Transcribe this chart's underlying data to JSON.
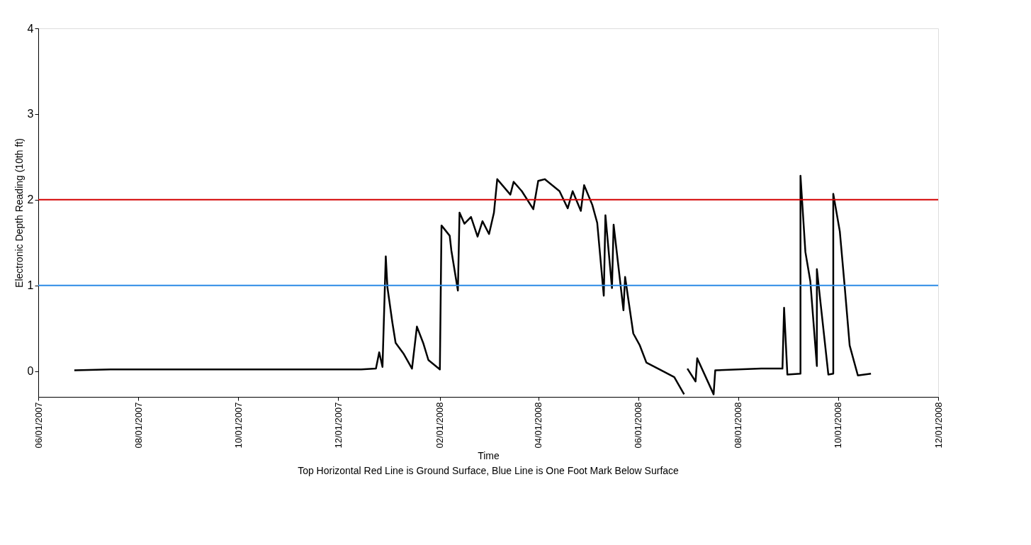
{
  "chart_data": {
    "type": "line",
    "xlabel": "Time",
    "ylabel": "Electronic Depth Reading (10th ft)",
    "annotations": [
      "Top Horizontal Red Line is Ground Surface, Blue Line is One Foot Mark Below Surface"
    ],
    "x": [
      "2007-06-23",
      "2007-07-15",
      "2007-08-15",
      "2007-09-15",
      "2007-10-15",
      "2007-11-15",
      "2007-12-15",
      "2007-12-24",
      "2007-12-26",
      "2007-12-28",
      "2007-12-30",
      "2007-12-31",
      "2008-01-03",
      "2008-01-05",
      "2008-01-10",
      "2008-01-15",
      "2008-01-18",
      "2008-01-22",
      "2008-01-25",
      "2008-02-01",
      "2008-02-02",
      "2008-02-07",
      "2008-02-08",
      "2008-02-12",
      "2008-02-13",
      "2008-02-16",
      "2008-02-20",
      "2008-02-24",
      "2008-02-27",
      "2008-03-02",
      "2008-03-05",
      "2008-03-07",
      "2008-03-15",
      "2008-03-17",
      "2008-03-22",
      "2008-03-29",
      "2008-04-01",
      "2008-04-05",
      "2008-04-14",
      "2008-04-19",
      "2008-04-22",
      "2008-04-27",
      "2008-04-29",
      "2008-05-04",
      "2008-05-07",
      "2008-05-11",
      "2008-05-12",
      "2008-05-16",
      "2008-05-17",
      "2008-05-23",
      "2008-05-24",
      "2008-05-29",
      "2008-06-02",
      "2008-06-06",
      "2008-06-16",
      "2008-06-23",
      "2008-06-29",
      "2008-06-30",
      "2008-07-01",
      "2008-07-06",
      "2008-07-07",
      "2008-07-17",
      "2008-07-18",
      "2008-08-15",
      "2008-08-28",
      "2008-08-29",
      "2008-08-31",
      "2008-09-08",
      "2008-09-08",
      "2008-09-11",
      "2008-09-14",
      "2008-09-18",
      "2008-09-18",
      "2008-09-25",
      "2008-09-28",
      "2008-09-28",
      "2008-10-02",
      "2008-10-05",
      "2008-10-08",
      "2008-10-13",
      "2008-10-21"
    ],
    "series": [
      {
        "color": "#000000",
        "values": [
          0.01,
          0.02,
          0.02,
          0.02,
          0.02,
          0.02,
          0.02,
          0.03,
          0.22,
          0.05,
          1.34,
          0.98,
          0.57,
          0.33,
          0.2,
          0.03,
          0.52,
          0.32,
          0.13,
          0.02,
          1.7,
          1.58,
          1.41,
          0.94,
          1.85,
          1.72,
          1.8,
          1.57,
          1.75,
          1.6,
          1.85,
          2.24,
          2.06,
          2.21,
          2.1,
          1.89,
          2.22,
          2.24,
          2.1,
          1.9,
          2.1,
          1.87,
          2.17,
          1.94,
          1.73,
          0.88,
          1.82,
          0.97,
          1.71,
          0.71,
          1.1,
          0.44,
          0.3,
          0.1,
          0.0,
          -0.07,
          -0.27,
          null,
          0.03,
          -0.12,
          0.15,
          -0.27,
          0.01,
          0.03,
          0.03,
          0.74,
          -0.04,
          -0.03,
          2.28,
          1.39,
          1.05,
          0.06,
          1.19,
          -0.04,
          -0.03,
          2.07,
          1.63,
          0.98,
          0.3,
          -0.05,
          -0.03
        ]
      }
    ],
    "xlim": [
      "2007-06-01",
      "2008-12-01"
    ],
    "xticks": [
      {
        "value": "2007-06-01",
        "label": "06/01/2007"
      },
      {
        "value": "2007-08-01",
        "label": "08/01/2007"
      },
      {
        "value": "2007-10-01",
        "label": "10/01/2007"
      },
      {
        "value": "2007-12-01",
        "label": "12/01/2007"
      },
      {
        "value": "2008-02-01",
        "label": "02/01/2008"
      },
      {
        "value": "2008-04-01",
        "label": "04/01/2008"
      },
      {
        "value": "2008-06-01",
        "label": "06/01/2008"
      },
      {
        "value": "2008-08-01",
        "label": "08/01/2008"
      },
      {
        "value": "2008-10-01",
        "label": "10/01/2008"
      },
      {
        "value": "2008-12-01",
        "label": "12/01/2008"
      }
    ],
    "ylim": [
      -0.3,
      4
    ],
    "yticks": [
      0,
      1,
      2,
      3,
      4
    ],
    "ref_lines": [
      {
        "axis": "y",
        "value": 2,
        "label": null,
        "color": "#d40000"
      },
      {
        "axis": "y",
        "value": 1,
        "label": null,
        "color": "#2a8ae6"
      }
    ],
    "grid": false,
    "marker": "none",
    "line_style": "solid"
  }
}
